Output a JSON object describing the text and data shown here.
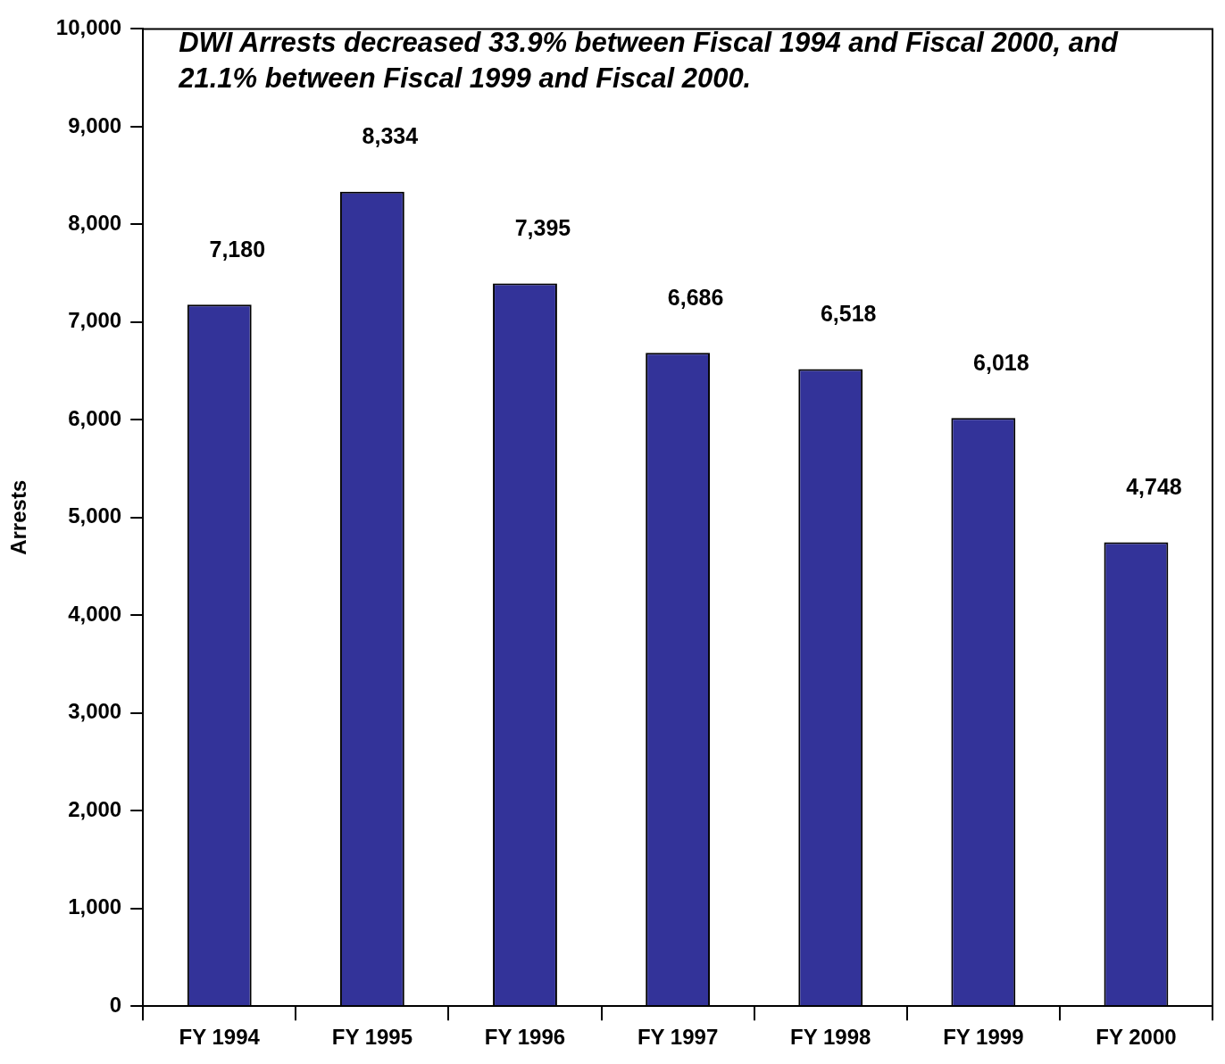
{
  "chart_data": {
    "type": "bar",
    "title": "DWI Arrests decreased 33.9% between Fiscal 1994 and Fiscal 2000, and 21.1% between Fiscal 1999 and Fiscal 2000.",
    "ylabel": "Arrests",
    "categories": [
      "FY 1994",
      "FY 1995",
      "FY 1996",
      "FY 1997",
      "FY 1998",
      "FY 1999",
      "FY 2000"
    ],
    "values": [
      7180,
      8334,
      7395,
      6686,
      6518,
      6018,
      4748
    ],
    "color": "#333399",
    "value_labels": [
      "7,180",
      "8,334",
      "7,395",
      "6,686",
      "6,518",
      "6,018",
      "4,748"
    ],
    "ylim": [
      0,
      10000
    ],
    "yticks": [
      0,
      {
        "value": 1000,
        "label": "1,000"
      },
      {
        "value": 2000,
        "label": "2,000"
      },
      {
        "value": 3000,
        "label": "3,000"
      },
      {
        "value": 4000,
        "label": "4,000"
      },
      {
        "value": 5000,
        "label": "5,000"
      },
      {
        "value": 6000,
        "label": "6,000"
      },
      {
        "value": 7000,
        "label": "7,000"
      },
      {
        "value": 8000,
        "label": "8,000"
      },
      {
        "value": 9000,
        "label": "9,000"
      },
      {
        "value": 10000,
        "label": "10,000"
      }
    ]
  }
}
